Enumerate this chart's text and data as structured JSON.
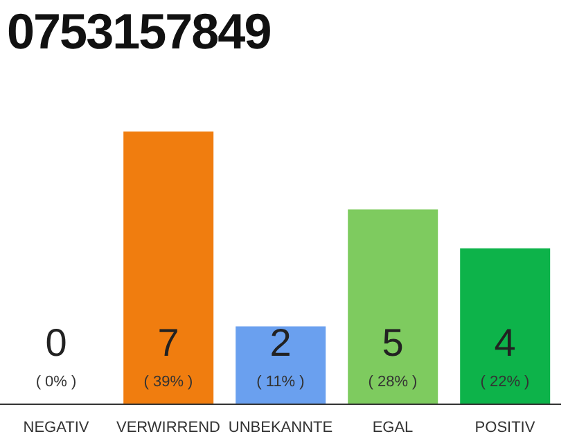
{
  "chart_data": {
    "type": "bar",
    "title": "0753157849",
    "categories": [
      "NEGATIV",
      "VERWIRREND",
      "UNBEKANNTE",
      "EGAL",
      "POSITIV"
    ],
    "values": [
      0,
      7,
      2,
      5,
      4
    ],
    "colors": [
      "#888888",
      "#f07d0f",
      "#6aa0ef",
      "#7ecb5f",
      "#0db34a"
    ],
    "data_labels": true,
    "annotations": [
      "( 0% )",
      "( 39% )",
      "( 11% )",
      "( 28% )",
      "( 22% )"
    ],
    "grid": false,
    "legend": false
  }
}
